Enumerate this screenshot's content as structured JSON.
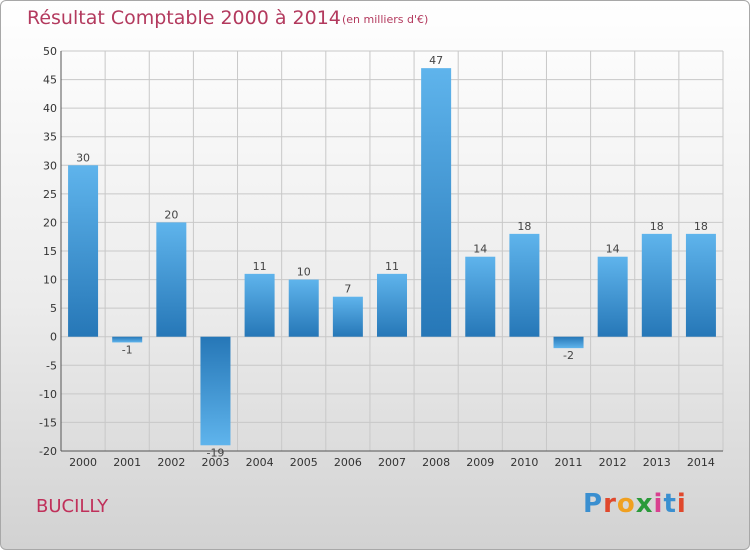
{
  "title": "Résultat Comptable 2000 à 2014",
  "subtitle": "(en milliers d'€)",
  "commune": "BUCILLY",
  "logo": {
    "letters": [
      "P",
      "r",
      "o",
      "x",
      "i",
      "t",
      "i"
    ],
    "colors": [
      "#3a8fd0",
      "#e0482c",
      "#f0a020",
      "#2a9a3a",
      "#d94090",
      "#3a8fd0",
      "#e0482c"
    ]
  },
  "colors": {
    "bar_top": "#5fb4ec",
    "bar_bottom": "#2677b7",
    "grid": "#c8c8c8"
  },
  "chart_data": {
    "type": "bar",
    "title": "Résultat Comptable 2000 à 2014",
    "ylabel": "",
    "xlabel": "",
    "ylim": [
      -20,
      50
    ],
    "yticks": [
      50,
      45,
      40,
      35,
      30,
      25,
      20,
      15,
      10,
      5,
      0,
      -5,
      -10,
      -15,
      -20
    ],
    "categories": [
      "2000",
      "2001",
      "2002",
      "2003",
      "2004",
      "2005",
      "2006",
      "2007",
      "2008",
      "2009",
      "2010",
      "2011",
      "2012",
      "2013",
      "2014"
    ],
    "values": [
      30,
      -1,
      20,
      -19,
      11,
      10,
      7,
      11,
      47,
      14,
      18,
      -2,
      14,
      18,
      18
    ]
  }
}
